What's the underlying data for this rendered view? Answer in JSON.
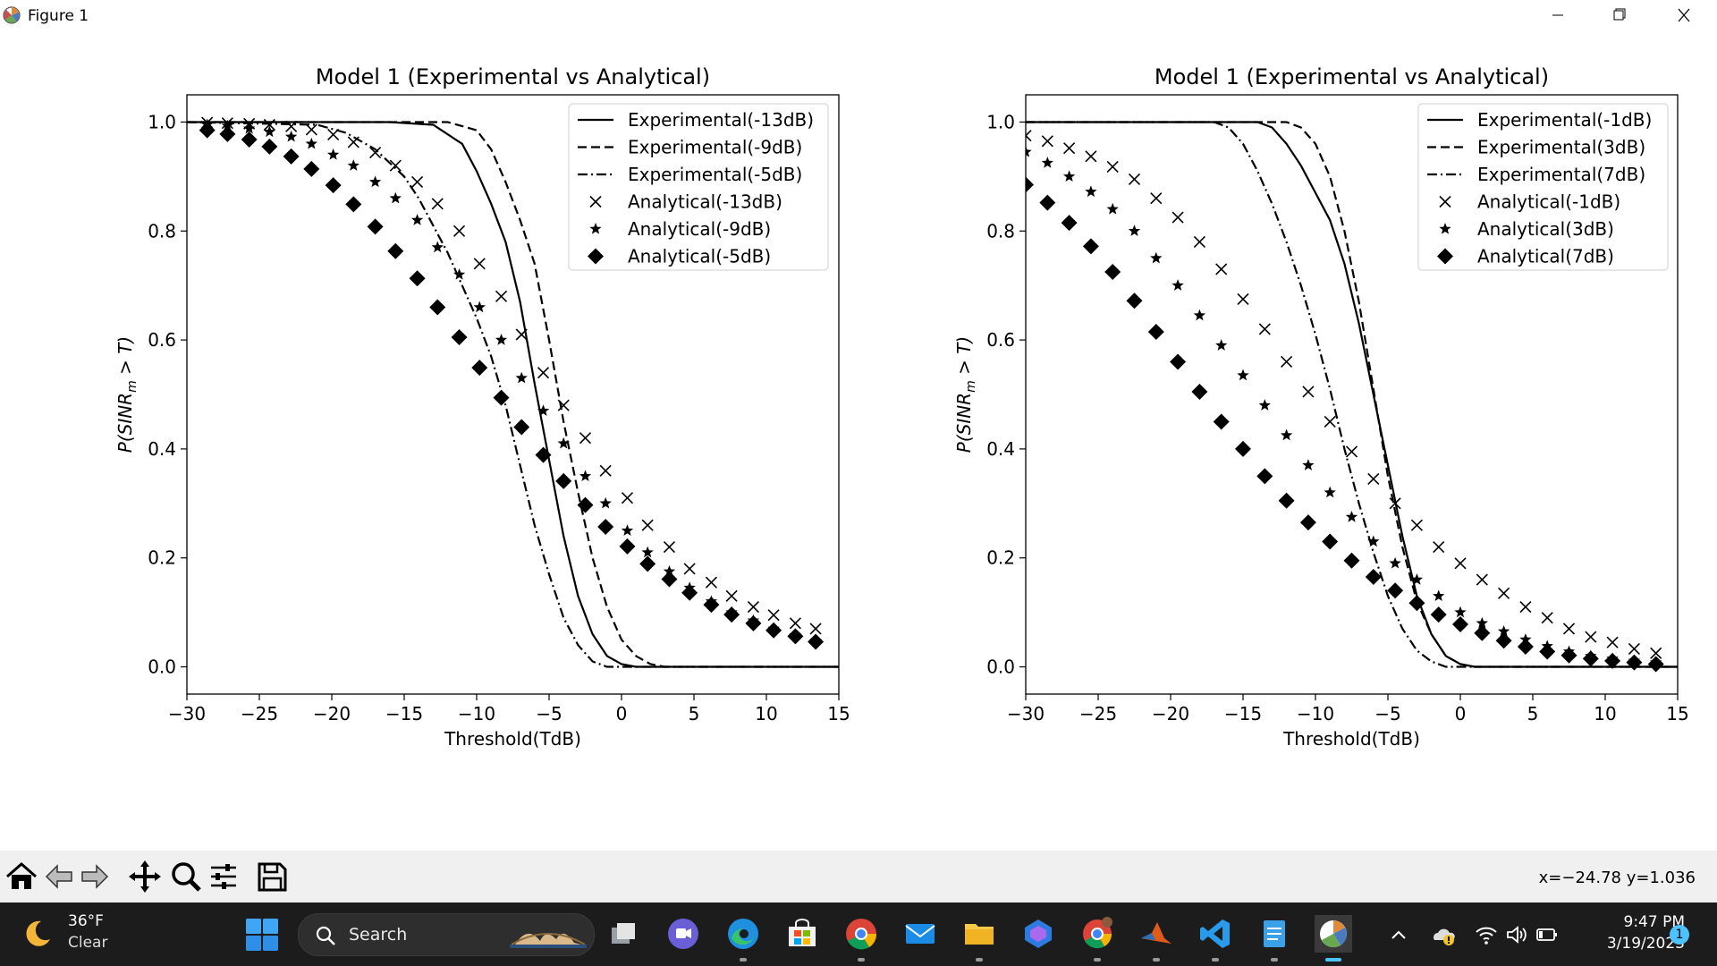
{
  "window": {
    "title": "Figure 1"
  },
  "toolbar": {
    "buttons": [
      "home-icon",
      "back-arrow-icon",
      "forward-arrow-icon",
      "pan-icon",
      "zoom-icon",
      "configure-subplots-icon",
      "save-icon"
    ],
    "coords": "x=−24.78 y=1.036"
  },
  "chart_data": [
    {
      "type": "line",
      "title": "Model 1 (Experimental vs Analytical)",
      "xlabel": "Threshold(TdB)",
      "ylabel": "P(SINR_m > T)",
      "xlim": [
        -30,
        15
      ],
      "ylim": [
        -0.05,
        1.05
      ],
      "xticks": [
        -30,
        -25,
        -20,
        -15,
        -10,
        -5,
        0,
        5,
        10,
        15
      ],
      "xtick_labels": [
        "−30",
        "−25",
        "−20",
        "−15",
        "−10",
        "−5",
        "0",
        "5",
        "10",
        "15"
      ],
      "yticks": [
        0.0,
        0.2,
        0.4,
        0.6,
        0.8,
        1.0
      ],
      "ytick_labels": [
        "0.0",
        "0.2",
        "0.4",
        "0.6",
        "0.8",
        "1.0"
      ],
      "grid": false,
      "legend_position": "top-right",
      "series": [
        {
          "name": "Experimental(-13dB)",
          "style": "solid",
          "x": [
            -30,
            -16,
            -13,
            -11,
            -10,
            -9,
            -8,
            -7,
            -6,
            -5,
            -4,
            -3,
            -2,
            -1,
            0,
            1,
            2,
            15
          ],
          "y": [
            1.0,
            1.0,
            0.995,
            0.96,
            0.91,
            0.85,
            0.78,
            0.67,
            0.52,
            0.38,
            0.24,
            0.13,
            0.06,
            0.02,
            0.005,
            0.0,
            0.0,
            0.0
          ]
        },
        {
          "name": "Experimental(-9dB)",
          "style": "dashed",
          "x": [
            -30,
            -13,
            -12,
            -10,
            -9,
            -8,
            -7,
            -6,
            -5,
            -4,
            -3,
            -2,
            -1,
            0,
            1,
            2,
            3,
            15
          ],
          "y": [
            1.0,
            1.0,
            1.0,
            0.985,
            0.95,
            0.89,
            0.82,
            0.74,
            0.6,
            0.45,
            0.32,
            0.2,
            0.11,
            0.05,
            0.02,
            0.005,
            0.0,
            0.0
          ]
        },
        {
          "name": "Experimental(-5dB)",
          "style": "dashdot",
          "x": [
            -30,
            -21,
            -19,
            -17,
            -15,
            -14,
            -13,
            -12,
            -11,
            -10,
            -9,
            -8,
            -7,
            -6,
            -5,
            -4,
            -3,
            -2,
            -1,
            0,
            15
          ],
          "y": [
            1.0,
            0.995,
            0.98,
            0.95,
            0.9,
            0.86,
            0.81,
            0.76,
            0.7,
            0.64,
            0.57,
            0.48,
            0.37,
            0.26,
            0.17,
            0.09,
            0.04,
            0.01,
            0.0,
            0.0,
            0.0
          ]
        },
        {
          "name": "Analytical(-13dB)",
          "style": "x",
          "x": [
            -28.6,
            -27.2,
            -25.7,
            -24.3,
            -22.8,
            -21.4,
            -19.9,
            -18.5,
            -17.0,
            -15.6,
            -14.1,
            -12.7,
            -11.2,
            -9.8,
            -8.3,
            -6.9,
            -5.4,
            -4.0,
            -2.5,
            -1.1,
            0.4,
            1.8,
            3.3,
            4.7,
            6.2,
            7.6,
            9.1,
            10.5,
            12.0,
            13.4
          ],
          "y": [
            0.999,
            0.998,
            0.997,
            0.995,
            0.992,
            0.986,
            0.977,
            0.963,
            0.944,
            0.92,
            0.89,
            0.85,
            0.8,
            0.74,
            0.68,
            0.61,
            0.54,
            0.48,
            0.42,
            0.36,
            0.31,
            0.26,
            0.22,
            0.18,
            0.155,
            0.13,
            0.11,
            0.095,
            0.08,
            0.07
          ]
        },
        {
          "name": "Analytical(-9dB)",
          "style": "star",
          "x": [
            -28.6,
            -27.2,
            -25.7,
            -24.3,
            -22.8,
            -21.4,
            -19.9,
            -18.5,
            -17.0,
            -15.6,
            -14.1,
            -12.7,
            -11.2,
            -9.8,
            -8.3,
            -6.9,
            -5.4,
            -4.0,
            -2.5,
            -1.1,
            0.4,
            1.8,
            3.3,
            4.7,
            6.2,
            7.6,
            9.1,
            10.5,
            12.0,
            13.4
          ],
          "y": [
            0.995,
            0.993,
            0.988,
            0.982,
            0.973,
            0.96,
            0.94,
            0.92,
            0.89,
            0.86,
            0.82,
            0.77,
            0.72,
            0.66,
            0.6,
            0.53,
            0.47,
            0.41,
            0.35,
            0.3,
            0.25,
            0.21,
            0.175,
            0.145,
            0.12,
            0.1,
            0.085,
            0.07,
            0.058,
            0.048
          ]
        },
        {
          "name": "Analytical(-5dB)",
          "style": "diamond",
          "x": [
            -28.6,
            -27.2,
            -25.7,
            -24.3,
            -22.8,
            -21.4,
            -19.9,
            -18.5,
            -17.0,
            -15.6,
            -14.1,
            -12.7,
            -11.2,
            -9.8,
            -8.3,
            -6.9,
            -5.4,
            -4.0,
            -2.5,
            -1.1,
            0.4,
            1.8,
            3.3,
            4.7,
            6.2,
            7.6,
            9.1,
            10.5,
            12.0,
            13.4
          ],
          "y": [
            0.985,
            0.978,
            0.968,
            0.955,
            0.937,
            0.914,
            0.884,
            0.849,
            0.808,
            0.763,
            0.713,
            0.66,
            0.605,
            0.549,
            0.494,
            0.44,
            0.389,
            0.341,
            0.297,
            0.257,
            0.221,
            0.189,
            0.161,
            0.136,
            0.114,
            0.096,
            0.08,
            0.067,
            0.056,
            0.046
          ]
        }
      ]
    },
    {
      "type": "line",
      "title": "Model 1 (Experimental vs Analytical)",
      "xlabel": "Threshold(TdB)",
      "ylabel": "P(SINR_m > T)",
      "xlim": [
        -30,
        15
      ],
      "ylim": [
        -0.05,
        1.05
      ],
      "xticks": [
        -30,
        -25,
        -20,
        -15,
        -10,
        -5,
        0,
        5,
        10,
        15
      ],
      "xtick_labels": [
        "−30",
        "−25",
        "−20",
        "−15",
        "−10",
        "−5",
        "0",
        "5",
        "10",
        "15"
      ],
      "yticks": [
        0.0,
        0.2,
        0.4,
        0.6,
        0.8,
        1.0
      ],
      "ytick_labels": [
        "0.0",
        "0.2",
        "0.4",
        "0.6",
        "0.8",
        "1.0"
      ],
      "grid": false,
      "legend_position": "top-right",
      "series": [
        {
          "name": "Experimental(-1dB)",
          "style": "solid",
          "x": [
            -30,
            -14,
            -13,
            -12,
            -11,
            -10,
            -9,
            -8,
            -7,
            -6,
            -5,
            -4,
            -3,
            -2,
            -1,
            0,
            1,
            2,
            15
          ],
          "y": [
            1.0,
            1.0,
            0.99,
            0.96,
            0.92,
            0.87,
            0.82,
            0.74,
            0.63,
            0.5,
            0.37,
            0.24,
            0.13,
            0.06,
            0.02,
            0.005,
            0.0,
            0.0,
            0.0
          ]
        },
        {
          "name": "Experimental(3dB)",
          "style": "dashed",
          "x": [
            -30,
            -12,
            -11,
            -10,
            -9,
            -8,
            -7,
            -6,
            -5,
            -4,
            -3,
            -2,
            -1,
            0,
            1,
            15
          ],
          "y": [
            1.0,
            1.0,
            0.99,
            0.96,
            0.9,
            0.8,
            0.67,
            0.51,
            0.35,
            0.22,
            0.12,
            0.06,
            0.02,
            0.005,
            0.0,
            0.0
          ]
        },
        {
          "name": "Experimental(7dB)",
          "style": "dashdot",
          "x": [
            -30,
            -17,
            -16,
            -15,
            -14,
            -13,
            -12,
            -11,
            -10,
            -9,
            -8,
            -7,
            -6,
            -5,
            -4,
            -3,
            -2,
            -1,
            15
          ],
          "y": [
            1.0,
            1.0,
            0.99,
            0.96,
            0.91,
            0.85,
            0.78,
            0.7,
            0.61,
            0.51,
            0.4,
            0.3,
            0.21,
            0.13,
            0.07,
            0.03,
            0.01,
            0.0,
            0.0
          ]
        },
        {
          "name": "Analytical(-1dB)",
          "style": "x",
          "x": [
            -30.0,
            -28.5,
            -27.0,
            -25.5,
            -24.0,
            -22.5,
            -21.0,
            -19.5,
            -18.0,
            -16.5,
            -15.0,
            -13.5,
            -12.0,
            -10.5,
            -9.0,
            -7.5,
            -6.0,
            -4.5,
            -3.0,
            -1.5,
            0.0,
            1.5,
            3.0,
            4.5,
            6.0,
            7.5,
            9.0,
            10.5,
            12.0,
            13.5
          ],
          "y": [
            0.975,
            0.965,
            0.952,
            0.937,
            0.918,
            0.895,
            0.86,
            0.825,
            0.78,
            0.73,
            0.675,
            0.62,
            0.56,
            0.505,
            0.45,
            0.395,
            0.345,
            0.3,
            0.26,
            0.22,
            0.19,
            0.16,
            0.135,
            0.11,
            0.09,
            0.07,
            0.055,
            0.045,
            0.033,
            0.025
          ]
        },
        {
          "name": "Analytical(3dB)",
          "style": "star",
          "x": [
            -30.0,
            -28.5,
            -27.0,
            -25.5,
            -24.0,
            -22.5,
            -21.0,
            -19.5,
            -18.0,
            -16.5,
            -15.0,
            -13.5,
            -12.0,
            -10.5,
            -9.0,
            -7.5,
            -6.0,
            -4.5,
            -3.0,
            -1.5,
            0.0,
            1.5,
            3.0,
            4.5,
            6.0,
            7.5,
            9.0,
            10.5,
            12.0,
            13.5
          ],
          "y": [
            0.945,
            0.925,
            0.9,
            0.872,
            0.84,
            0.8,
            0.75,
            0.7,
            0.645,
            0.59,
            0.535,
            0.48,
            0.425,
            0.37,
            0.32,
            0.275,
            0.23,
            0.19,
            0.16,
            0.13,
            0.1,
            0.08,
            0.065,
            0.05,
            0.038,
            0.028,
            0.02,
            0.015,
            0.011,
            0.008
          ]
        },
        {
          "name": "Analytical(7dB)",
          "style": "diamond",
          "x": [
            -30.0,
            -28.5,
            -27.0,
            -25.5,
            -24.0,
            -22.5,
            -21.0,
            -19.5,
            -18.0,
            -16.5,
            -15.0,
            -13.5,
            -12.0,
            -10.5,
            -9.0,
            -7.5,
            -6.0,
            -4.5,
            -3.0,
            -1.5,
            0.0,
            1.5,
            3.0,
            4.5,
            6.0,
            7.5,
            9.0,
            10.5,
            12.0,
            13.5
          ],
          "y": [
            0.885,
            0.852,
            0.815,
            0.772,
            0.725,
            0.672,
            0.615,
            0.56,
            0.505,
            0.45,
            0.4,
            0.35,
            0.305,
            0.265,
            0.23,
            0.195,
            0.165,
            0.14,
            0.117,
            0.096,
            0.078,
            0.062,
            0.048,
            0.037,
            0.028,
            0.021,
            0.015,
            0.011,
            0.008,
            0.005
          ]
        }
      ]
    }
  ],
  "taskbar": {
    "weather_temp": "36°F",
    "weather_cond": "Clear",
    "search_label": "Search",
    "time": "9:47 PM",
    "date": "3/19/2023",
    "notification_count": "1",
    "apps": [
      "task-view-icon",
      "chat-icon",
      "edge-icon",
      "store-icon",
      "chrome-icon",
      "mail-icon",
      "file-explorer-icon",
      "copilot-icon",
      "chrome-profile-icon",
      "matlab-icon",
      "vscode-icon",
      "notepad-icon",
      "python-figure-icon"
    ]
  }
}
